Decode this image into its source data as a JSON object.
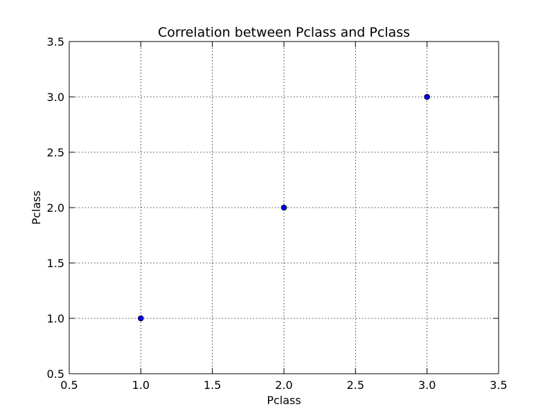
{
  "chart_data": {
    "type": "scatter",
    "title": "Correlation between Pclass and Pclass",
    "xlabel": "Pclass",
    "ylabel": "Pclass",
    "xlim": [
      0.5,
      3.5
    ],
    "ylim": [
      0.5,
      3.5
    ],
    "x_ticks": [
      0.5,
      1.0,
      1.5,
      2.0,
      2.5,
      3.0,
      3.5
    ],
    "y_ticks": [
      0.5,
      1.0,
      1.5,
      2.0,
      2.5,
      3.0,
      3.5
    ],
    "x_tick_labels": [
      "0.5",
      "1.0",
      "1.5",
      "2.0",
      "2.5",
      "3.0",
      "3.5"
    ],
    "y_tick_labels": [
      "0.5",
      "1.0",
      "1.5",
      "2.0",
      "2.5",
      "3.0",
      "3.5"
    ],
    "grid": true,
    "series": [
      {
        "x": [
          1.0,
          2.0,
          3.0
        ],
        "y": [
          1.0,
          2.0,
          3.0
        ],
        "color": "#0000ff",
        "marker": "circle"
      }
    ]
  }
}
